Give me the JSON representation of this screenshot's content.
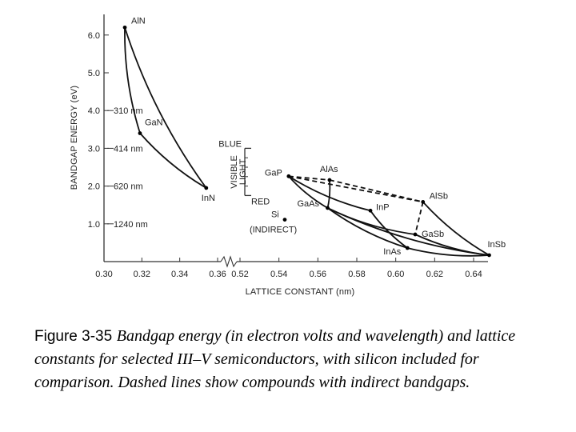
{
  "chart_data": {
    "type": "scatter",
    "title": "",
    "xlabel": "LATTICE CONSTANT (nm)",
    "ylabel": "BANDGAP ENERGY (eV)",
    "xlim": [
      0.3,
      0.65
    ],
    "ylim": [
      0,
      6.5
    ],
    "x_break": {
      "from": 0.36,
      "to": 0.52
    },
    "xticks": [
      "0.30",
      "0.32",
      "0.34",
      "0.36",
      "0.52",
      "0.54",
      "0.56",
      "0.58",
      "0.60",
      "0.62",
      "0.64"
    ],
    "yticks": [
      {
        "value": 1.0,
        "label": "1.0",
        "wavelength": "1240 nm"
      },
      {
        "value": 2.0,
        "label": "2.0",
        "wavelength": "620 nm"
      },
      {
        "value": 3.0,
        "label": "3.0",
        "wavelength": "414 nm"
      },
      {
        "value": 4.0,
        "label": "4.0",
        "wavelength": "310 nm"
      },
      {
        "value": 5.0,
        "label": "5.0",
        "wavelength": ""
      },
      {
        "value": 6.0,
        "label": "6.0",
        "wavelength": ""
      }
    ],
    "points": [
      {
        "name": "AlN",
        "x": 0.311,
        "y": 6.2
      },
      {
        "name": "GaN",
        "x": 0.319,
        "y": 3.4
      },
      {
        "name": "InN",
        "x": 0.354,
        "y": 1.95
      },
      {
        "name": "GaP",
        "x": 0.545,
        "y": 2.26
      },
      {
        "name": "AlAs",
        "x": 0.566,
        "y": 2.16
      },
      {
        "name": "GaAs",
        "x": 0.565,
        "y": 1.42
      },
      {
        "name": "InP",
        "x": 0.587,
        "y": 1.35
      },
      {
        "name": "AlSb",
        "x": 0.614,
        "y": 1.58
      },
      {
        "name": "GaSb",
        "x": 0.61,
        "y": 0.72
      },
      {
        "name": "InAs",
        "x": 0.606,
        "y": 0.36
      },
      {
        "name": "InSb",
        "x": 0.648,
        "y": 0.17
      },
      {
        "name": "Si",
        "x": 0.543,
        "y": 1.11
      }
    ],
    "si_note": "(INDIRECT)",
    "visible_band": {
      "label_lines": [
        "VISIBLE",
        "LIGHT"
      ],
      "top_label": "BLUE",
      "bottom_label": "RED",
      "y_top": 3.0,
      "y_bottom": 1.75
    },
    "curves": [
      {
        "from": "AlN",
        "to": "InN",
        "style": "solid"
      },
      {
        "from": "AlN",
        "to": "GaN",
        "style": "solid"
      },
      {
        "from": "GaN",
        "to": "InN",
        "style": "solid"
      },
      {
        "from": "GaP",
        "to": "GaAs",
        "style": "solid"
      },
      {
        "from": "GaP",
        "to": "InP",
        "style": "solid"
      },
      {
        "from": "GaAs",
        "to": "InAs",
        "style": "solid"
      },
      {
        "from": "GaAs",
        "to": "GaSb",
        "style": "solid"
      },
      {
        "from": "GaAs",
        "to": "InSb",
        "style": "solid"
      },
      {
        "from": "InP",
        "to": "InAs",
        "style": "solid"
      },
      {
        "from": "InAs",
        "to": "InSb",
        "style": "solid"
      },
      {
        "from": "GaSb",
        "to": "InSb",
        "style": "solid"
      },
      {
        "from": "AlSb",
        "to": "InSb",
        "style": "solid"
      },
      {
        "from": "AlAs",
        "to": "GaAs",
        "style": "solid"
      },
      {
        "from": "GaP",
        "to": "AlAs",
        "style": "dashed"
      },
      {
        "from": "AlAs",
        "to": "AlSb",
        "style": "dashed"
      },
      {
        "from": "GaP",
        "to": "AlSb",
        "style": "dashed"
      },
      {
        "from": "AlSb",
        "to": "GaSb",
        "style": "dashed"
      }
    ]
  },
  "caption": {
    "label": "Figure 3-35",
    "text": "Bandgap energy (in electron volts and wavelength) and lattice constants for selected III–V semiconductors, with silicon included for comparison.  Dashed lines show compounds with indirect bandgaps."
  }
}
